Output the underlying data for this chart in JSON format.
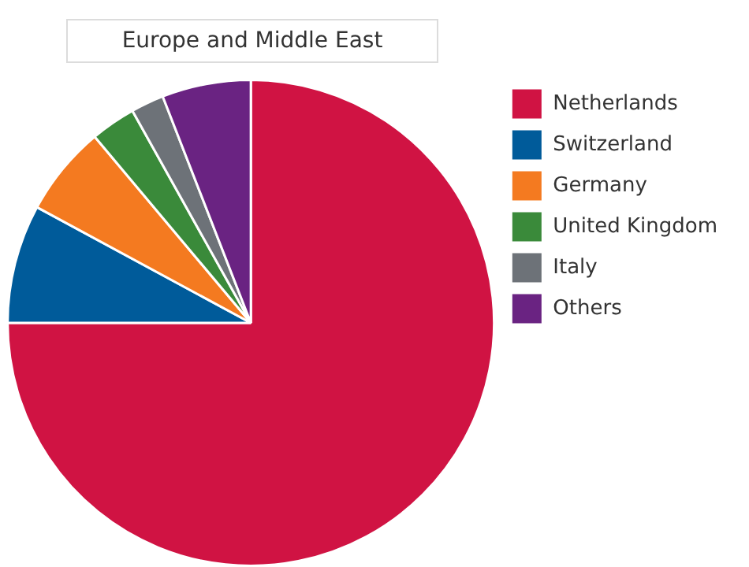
{
  "chart_data": {
    "type": "pie",
    "title": "Europe and Middle East",
    "categories": [
      "Netherlands",
      "Switzerland",
      "Germany",
      "United Kingdom",
      "Italy",
      "Others"
    ],
    "values": [
      75,
      7.9,
      6,
      3,
      2.2,
      5.9
    ],
    "colors": [
      "#d01343",
      "#005b9a",
      "#f47a20",
      "#3a8a3a",
      "#6d7278",
      "#6a2382"
    ],
    "legend": "right"
  }
}
